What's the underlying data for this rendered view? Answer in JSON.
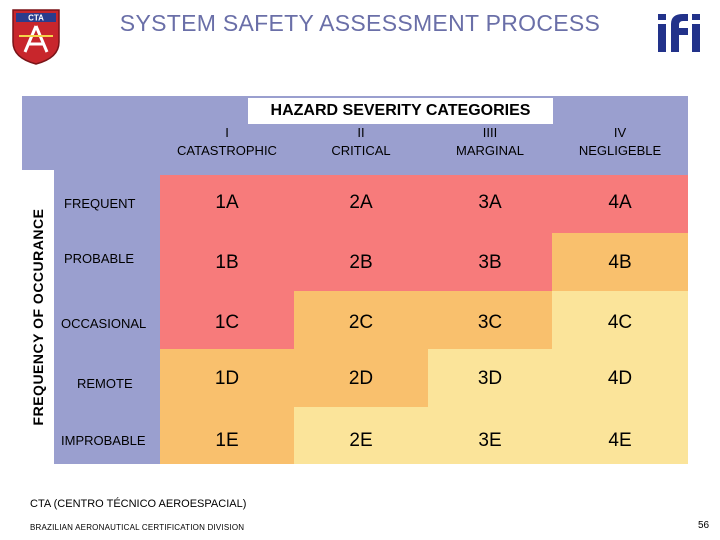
{
  "title": "SYSTEM SAFETY ASSESSMENT PROCESS",
  "logo_left_text": "CTA",
  "matrix": {
    "header_title": "HAZARD SEVERITY CATEGORIES",
    "frequency_label": "FREQUENCY OF OCCURANCE",
    "columns": [
      {
        "num": "I",
        "name": "CATASTROPHIC"
      },
      {
        "num": "II",
        "name": "CRITICAL"
      },
      {
        "num": "IIII",
        "name": "MARGINAL"
      },
      {
        "num": "IV",
        "name": "NEGLIGEBLE"
      }
    ],
    "rows": [
      {
        "label": "FREQUENT",
        "cells": [
          "1A",
          "2A",
          "3A",
          "4A"
        ]
      },
      {
        "label": "PROBABLE",
        "cells": [
          "1B",
          "2B",
          "3B",
          "4B"
        ]
      },
      {
        "label": "OCCASIONAL",
        "cells": [
          "1C",
          "2C",
          "3C",
          "4C"
        ]
      },
      {
        "label": "REMOTE",
        "cells": [
          "1D",
          "2D",
          "3D",
          "4D"
        ]
      },
      {
        "label": "IMPROBABLE",
        "cells": [
          "1E",
          "2E",
          "3E",
          "4E"
        ]
      }
    ],
    "cell_colors": [
      [
        "#f77b7b",
        "#f77b7b",
        "#f77b7b",
        "#f77b7b"
      ],
      [
        "#f77b7b",
        "#f77b7b",
        "#f77b7b",
        "#f9c06d"
      ],
      [
        "#f77b7b",
        "#f9c06d",
        "#f9c06d",
        "#fbe49a"
      ],
      [
        "#f9c06d",
        "#f9c06d",
        "#fbe49a",
        "#fbe49a"
      ],
      [
        "#f9c06d",
        "#fbe49a",
        "#fbe49a",
        "#fbe49a"
      ]
    ]
  },
  "footer": {
    "line1": "CTA (CENTRO TÉCNICO AEROESPACIAL)",
    "line2": "BRAZILIAN AERONAUTICAL CERTIFICATION DIVISION"
  },
  "page_number": "56"
}
